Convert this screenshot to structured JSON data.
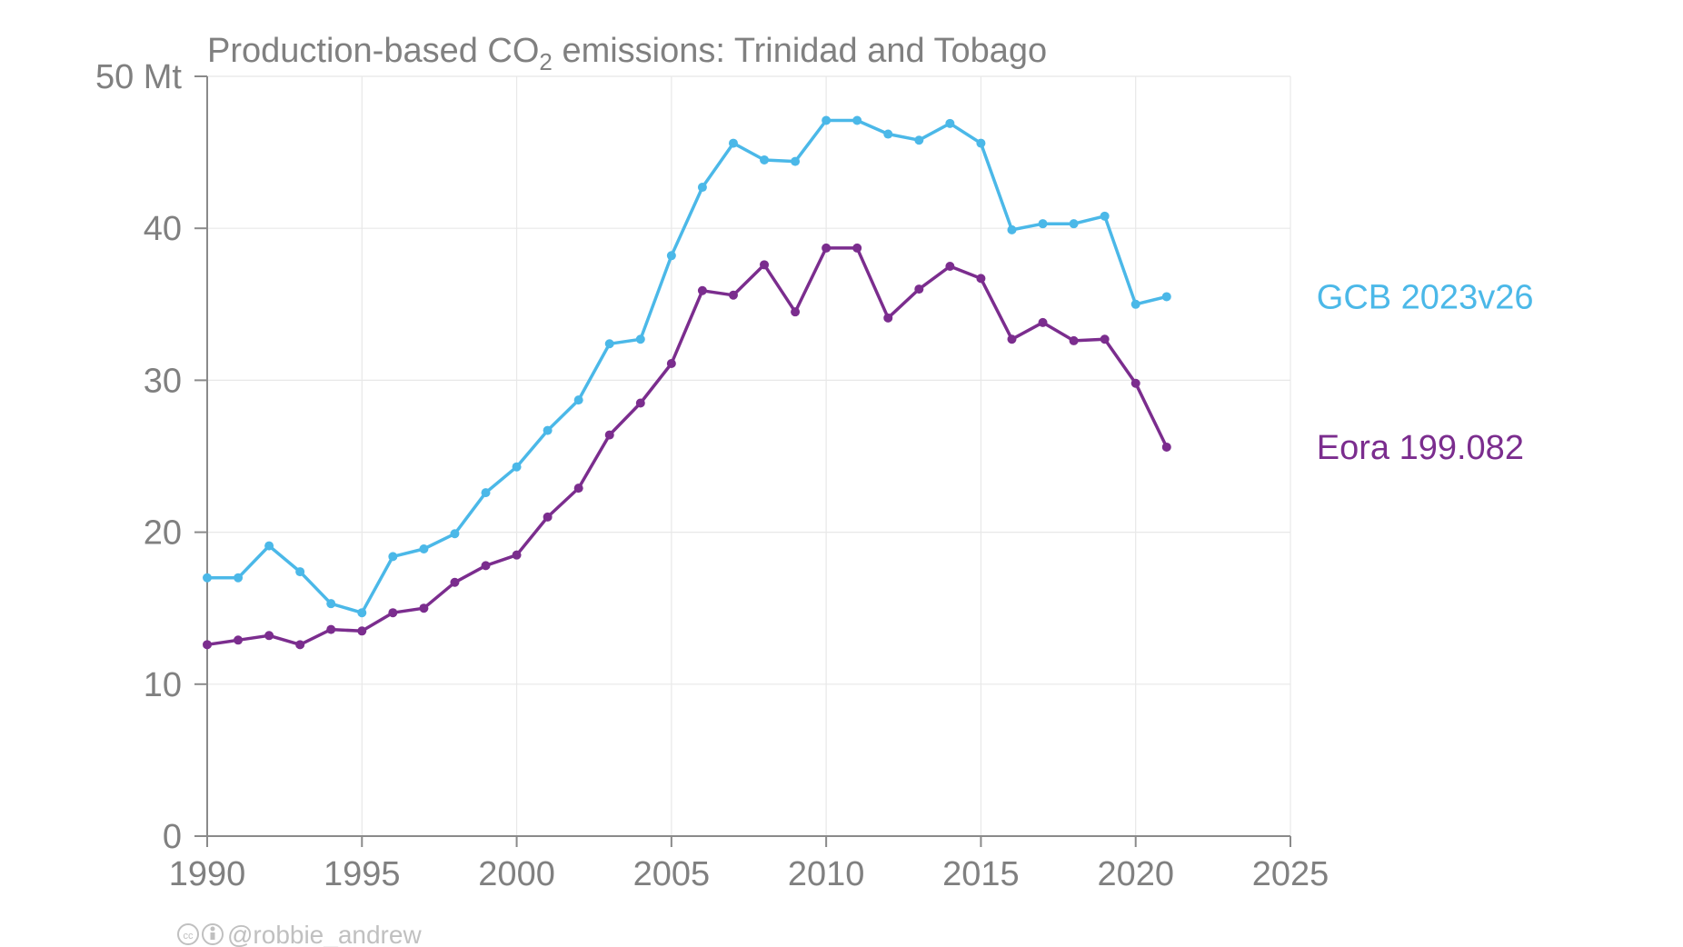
{
  "chart_data": {
    "type": "line",
    "title": "Production-based CO₂ emissions: Trinidad and Tobago",
    "title_parts": {
      "before": "Production-based CO",
      "subscript": "2",
      "after": " emissions: Trinidad and Tobago"
    },
    "xlabel": "",
    "ylabel": "",
    "y_unit": "Mt",
    "xlim": [
      1990,
      2025
    ],
    "ylim": [
      0,
      50
    ],
    "x_ticks": [
      1990,
      1995,
      2000,
      2005,
      2010,
      2015,
      2020,
      2025
    ],
    "y_ticks": [
      0,
      10,
      20,
      30,
      40,
      50
    ],
    "y_tick_labels": [
      "0",
      "10",
      "20",
      "30",
      "40",
      "50 Mt"
    ],
    "grid": true,
    "legend": "direct labels right of lines",
    "x": [
      1990,
      1991,
      1992,
      1993,
      1994,
      1995,
      1996,
      1997,
      1998,
      1999,
      2000,
      2001,
      2002,
      2003,
      2004,
      2005,
      2006,
      2007,
      2008,
      2009,
      2010,
      2011,
      2012,
      2013,
      2014,
      2015,
      2016,
      2017,
      2018,
      2019,
      2020,
      2021
    ],
    "series": [
      {
        "name": "GCB 2023v26",
        "color": "#4bb8e8",
        "values": [
          17.0,
          17.0,
          19.1,
          17.4,
          15.3,
          14.7,
          18.4,
          18.9,
          19.9,
          22.6,
          24.3,
          26.7,
          28.7,
          32.4,
          32.7,
          38.2,
          42.7,
          45.6,
          44.5,
          44.4,
          47.1,
          47.1,
          46.2,
          45.8,
          46.9,
          45.6,
          39.9,
          40.3,
          40.3,
          40.8,
          35.0,
          35.5
        ]
      },
      {
        "name": "Eora 199.082",
        "color": "#7b2d8e",
        "values": [
          12.6,
          12.9,
          13.2,
          12.6,
          13.6,
          13.5,
          14.7,
          15.0,
          16.7,
          17.8,
          18.5,
          21.0,
          22.9,
          26.4,
          28.5,
          31.1,
          35.9,
          35.6,
          37.6,
          34.5,
          38.7,
          38.7,
          34.1,
          36.0,
          37.5,
          36.7,
          32.7,
          33.8,
          32.6,
          32.7,
          29.8,
          25.6
        ]
      }
    ]
  },
  "credit": "@robbie_andrew",
  "credit_icons": [
    "cc-icon",
    "by-icon"
  ]
}
